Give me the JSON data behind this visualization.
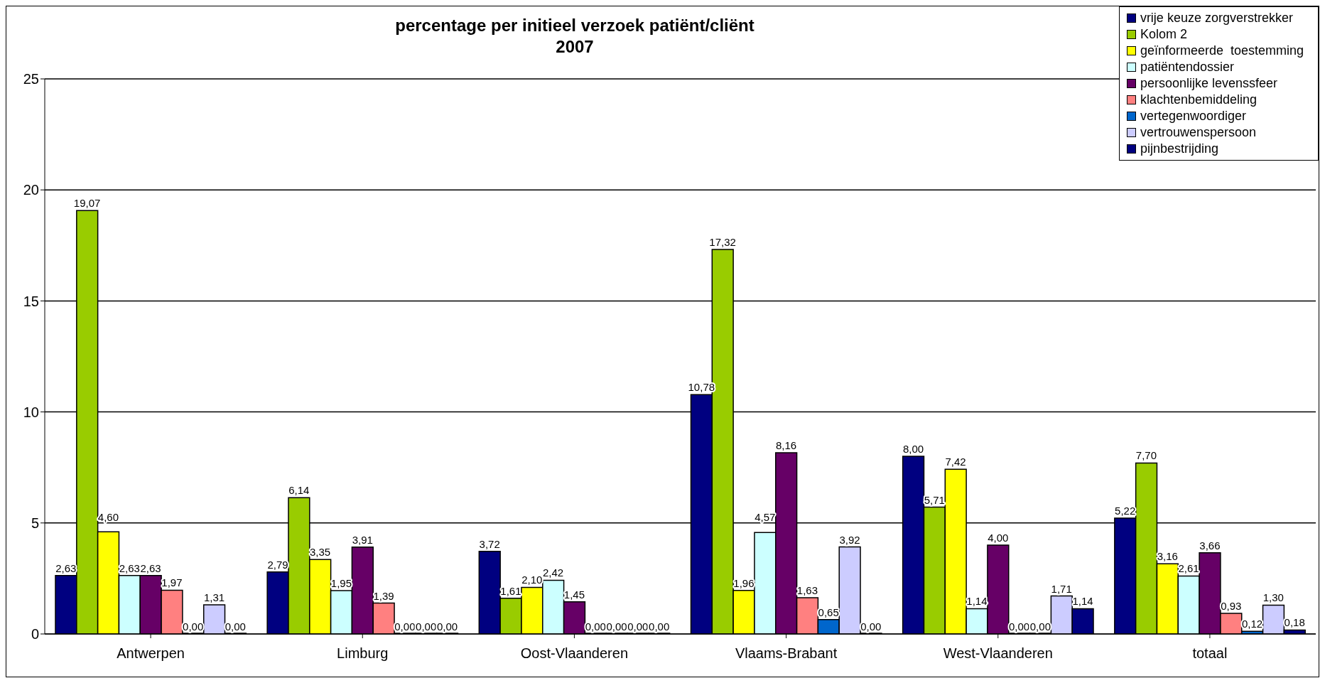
{
  "chart_data": {
    "type": "bar",
    "title": "percentage per initieel verzoek patiënt/cliënt",
    "subtitle": "2007",
    "categories": [
      "Antwerpen",
      "Limburg",
      "Oost-Vlaanderen",
      "Vlaams-Brabant",
      "West-Vlaanderen",
      "totaal"
    ],
    "series": [
      {
        "name": "vrije keuze zorgverstrekker",
        "color": "#000080",
        "values": [
          2.63,
          2.79,
          3.72,
          10.78,
          8.0,
          5.22
        ],
        "value_labels": [
          "2,63",
          "2,79",
          "3,72",
          "10,78",
          "8,00",
          "5,22"
        ]
      },
      {
        "name": "Kolom 2",
        "color": "#99cc00",
        "values": [
          19.07,
          6.14,
          1.61,
          17.32,
          5.71,
          7.7
        ],
        "value_labels": [
          "19,07",
          "6,14",
          "1,61",
          "17,32",
          "5,71",
          "7,70"
        ]
      },
      {
        "name": "geïnformeerde  toestemming",
        "color": "#ffff00",
        "values": [
          4.6,
          3.35,
          2.1,
          1.96,
          7.42,
          3.16
        ],
        "value_labels": [
          "4,60",
          "3,35",
          "2,10",
          "1,96",
          "7,42",
          "3,16"
        ]
      },
      {
        "name": "patiëntendossier",
        "color": "#ccffff",
        "values": [
          2.63,
          1.95,
          2.42,
          4.57,
          1.14,
          2.61
        ],
        "value_labels": [
          "2,63",
          "1,95",
          "2,42",
          "4,57",
          "1,14",
          "2,61"
        ]
      },
      {
        "name": "persoonlijke levenssfeer",
        "color": "#660066",
        "values": [
          2.63,
          3.91,
          1.45,
          8.16,
          4.0,
          3.66
        ],
        "value_labels": [
          "2,63",
          "3,91",
          "1,45",
          "8,16",
          "4,00",
          "3,66"
        ]
      },
      {
        "name": "klachtenbemiddeling",
        "color": "#ff8080",
        "values": [
          1.97,
          1.39,
          0.0,
          1.63,
          0.0,
          0.93
        ],
        "value_labels": [
          "1,97",
          "1,39",
          "0,00",
          "1,63",
          "0,00",
          "0,93"
        ]
      },
      {
        "name": "vertegenwoordiger",
        "color": "#0066cc",
        "values": [
          0.0,
          0.0,
          0.0,
          0.65,
          0.0,
          0.12
        ],
        "value_labels": [
          "0,00",
          "0,00",
          "0,00",
          "0,65",
          "0,00",
          "0,12"
        ]
      },
      {
        "name": "vertrouwenspersoon",
        "color": "#ccccff",
        "values": [
          1.31,
          0.0,
          0.0,
          3.92,
          1.71,
          1.3
        ],
        "value_labels": [
          "1,31",
          "0,00",
          "0,00",
          "3,92",
          "1,71",
          "1,30"
        ]
      },
      {
        "name": "pijnbestrijding",
        "color": "#000080",
        "values": [
          0.0,
          0.0,
          0.0,
          0.0,
          1.14,
          0.18
        ],
        "value_labels": [
          "0,00",
          "0,00",
          "0,00",
          "0,00",
          "1,14",
          "0,18"
        ]
      }
    ],
    "ylim": [
      0,
      25
    ],
    "yticks": [
      0,
      5,
      10,
      15,
      20,
      25
    ],
    "grid": "y",
    "legend": "top right"
  }
}
